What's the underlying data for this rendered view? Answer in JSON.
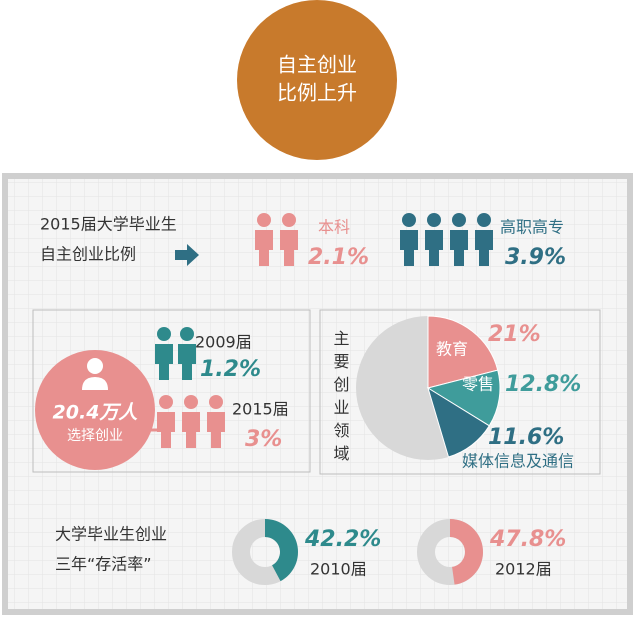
{
  "badge": {
    "line1": "自主创业",
    "line2": "比例上升"
  },
  "ratio": {
    "label_line1": "2015届大学毕业生",
    "label_line2": "自主创业比例",
    "groups": [
      {
        "name": "本科",
        "value": "2.1%"
      },
      {
        "name": "高职高专",
        "value": "3.9%"
      }
    ]
  },
  "count": {
    "total": "20.4万人",
    "caption": "选择创业",
    "years": [
      {
        "year": "2009届",
        "value": "1.2%"
      },
      {
        "year": "2015届",
        "value": "3%"
      }
    ]
  },
  "fields": {
    "type": "pie",
    "title": "主要创业领域",
    "categories": [
      "教育",
      "零售",
      "媒体信息及通信"
    ],
    "values": [
      21,
      12.8,
      11.6
    ],
    "value_labels": [
      "21%",
      "12.8%",
      "11.6%"
    ],
    "colors": [
      "#e8908f",
      "#3f9c9b",
      "#2f6f84"
    ]
  },
  "survival": {
    "type": "donut",
    "title_line1": "大学毕业生创业",
    "title_line2": "三年“存活率”",
    "items": [
      {
        "year": "2010届",
        "value": 42.2,
        "value_label": "42.2%",
        "color": "#2e8a8c"
      },
      {
        "year": "2012届",
        "value": 47.8,
        "value_label": "47.8%",
        "color": "#e8908f"
      }
    ]
  }
}
